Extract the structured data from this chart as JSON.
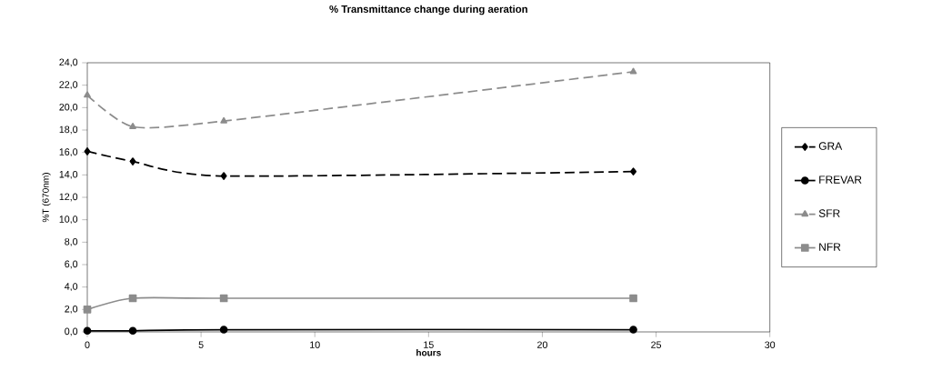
{
  "chart_data": {
    "type": "line",
    "title": "% Transmittance change during aeration",
    "xlabel": "hours",
    "ylabel": "%T (670nm)",
    "x": [
      0,
      2,
      6,
      24
    ],
    "series": [
      {
        "name": "GRA",
        "color": "#000000",
        "values": [
          16.1,
          15.2,
          13.9,
          14.3
        ],
        "marker": "diamond",
        "line_style": "dashed"
      },
      {
        "name": "FREVAR",
        "color": "#000000",
        "values": [
          0.1,
          0.1,
          0.2,
          0.2
        ],
        "marker": "circle",
        "line_style": "solid"
      },
      {
        "name": "SFR",
        "color": "#8c8c8c",
        "values": [
          21.1,
          18.3,
          18.8,
          23.2
        ],
        "marker": "triangle",
        "line_style": "dashed"
      },
      {
        "name": "NFR",
        "color": "#8c8c8c",
        "values": [
          2.0,
          3.0,
          3.0,
          3.0
        ],
        "marker": "square",
        "line_style": "solid"
      }
    ],
    "xlim": [
      0,
      30
    ],
    "xticks": [
      0,
      5,
      10,
      15,
      20,
      25,
      30
    ],
    "ylim": [
      0,
      24
    ],
    "yticks": [
      {
        "value": 0,
        "label": "0,0"
      },
      {
        "value": 2,
        "label": "2,0"
      },
      {
        "value": 4,
        "label": "4,0"
      },
      {
        "value": 6,
        "label": "6,0"
      },
      {
        "value": 8,
        "label": "8,0"
      },
      {
        "value": 10,
        "label": "10,0"
      },
      {
        "value": 12,
        "label": "12,0"
      },
      {
        "value": 14,
        "label": "14,0"
      },
      {
        "value": 16,
        "label": "16,0"
      },
      {
        "value": 18,
        "label": "18,0"
      },
      {
        "value": 20,
        "label": "20,0"
      },
      {
        "value": 22,
        "label": "22,0"
      },
      {
        "value": 24,
        "label": "24,0"
      }
    ],
    "grid": false,
    "legend": "right"
  }
}
